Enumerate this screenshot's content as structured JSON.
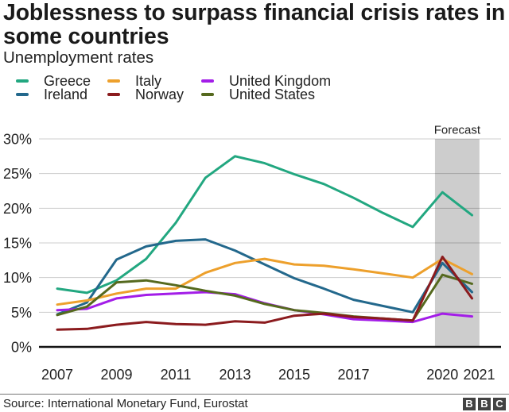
{
  "header": {
    "title": "Joblessness to surpass financial crisis rates in some countries",
    "subtitle": "Unemployment rates"
  },
  "legend": {
    "items": [
      {
        "label": "Greece"
      },
      {
        "label": "Ireland"
      },
      {
        "label": "Italy"
      },
      {
        "label": "Norway"
      },
      {
        "label": "United Kingdom"
      },
      {
        "label": "United States"
      }
    ]
  },
  "chart_data": {
    "type": "line",
    "title": "Unemployment rates",
    "xlabel": "",
    "ylabel": "",
    "x": [
      2007,
      2008,
      2009,
      2010,
      2011,
      2012,
      2013,
      2014,
      2015,
      2016,
      2017,
      2018,
      2019,
      2020,
      2021
    ],
    "ylim": [
      0,
      30
    ],
    "yticks": [
      {
        "value": 0,
        "label": "0%"
      },
      {
        "value": 5,
        "label": "5%"
      },
      {
        "value": 10,
        "label": "10%"
      },
      {
        "value": 15,
        "label": "15%"
      },
      {
        "value": 20,
        "label": "20%"
      },
      {
        "value": 25,
        "label": "25%"
      },
      {
        "value": 30,
        "label": "30%"
      }
    ],
    "xticks": [
      {
        "year": 2007,
        "label": "2007"
      },
      {
        "year": 2009,
        "label": "2009"
      },
      {
        "year": 2011,
        "label": "2011"
      },
      {
        "year": 2013,
        "label": "2013"
      },
      {
        "year": 2015,
        "label": "2015"
      },
      {
        "year": 2017,
        "label": "2017"
      },
      {
        "year": 2020,
        "label": "2020"
      },
      {
        "year": 2021,
        "label": "2021",
        "dx": 9
      }
    ],
    "grid": "horizontal",
    "legend_position": "top",
    "forecast_band": {
      "label": "Forecast",
      "from_year": 2019.75,
      "to_year": 2021.25
    },
    "series": [
      {
        "name": "Greece",
        "color": "#22a780",
        "z": 1,
        "values": [
          8.4,
          7.8,
          9.6,
          12.7,
          17.9,
          24.4,
          27.5,
          26.5,
          24.9,
          23.5,
          21.5,
          19.3,
          17.3,
          22.3,
          19.0
        ]
      },
      {
        "name": "Ireland",
        "color": "#23688c",
        "z": 2,
        "values": [
          4.7,
          6.4,
          12.6,
          14.5,
          15.3,
          15.5,
          13.9,
          11.9,
          9.9,
          8.4,
          6.8,
          5.9,
          5.0,
          12.1,
          7.9
        ]
      },
      {
        "name": "Italy",
        "color": "#eda02c",
        "z": 3,
        "values": [
          6.1,
          6.7,
          7.7,
          8.4,
          8.4,
          10.7,
          12.1,
          12.7,
          11.9,
          11.7,
          11.2,
          10.6,
          10.0,
          12.7,
          10.5
        ]
      },
      {
        "name": "Norway",
        "color": "#8b1b1e",
        "z": 6,
        "values": [
          2.5,
          2.6,
          3.2,
          3.6,
          3.3,
          3.2,
          3.7,
          3.5,
          4.5,
          4.8,
          4.3,
          4.1,
          3.8,
          13.0,
          7.0
        ]
      },
      {
        "name": "United Kingdom",
        "color": "#a31de8",
        "z": 4,
        "values": [
          5.3,
          5.5,
          7.0,
          7.5,
          7.7,
          7.9,
          7.6,
          6.3,
          5.3,
          4.7,
          4.0,
          3.8,
          3.6,
          4.8,
          4.4
        ]
      },
      {
        "name": "United States",
        "color": "#55691e",
        "z": 5,
        "values": [
          4.6,
          5.8,
          9.3,
          9.6,
          8.9,
          8.1,
          7.4,
          6.2,
          5.3,
          4.9,
          4.4,
          4.1,
          3.8,
          10.4,
          9.1
        ]
      }
    ]
  },
  "footer": {
    "source": "Source: International Monetary Fund, Eurostat",
    "logo_letters": [
      "B",
      "B",
      "C"
    ]
  },
  "colors": {
    "grid": "#cbcbcb",
    "axis": "#141414",
    "band": "#cdcdcd",
    "text": "#222222"
  }
}
